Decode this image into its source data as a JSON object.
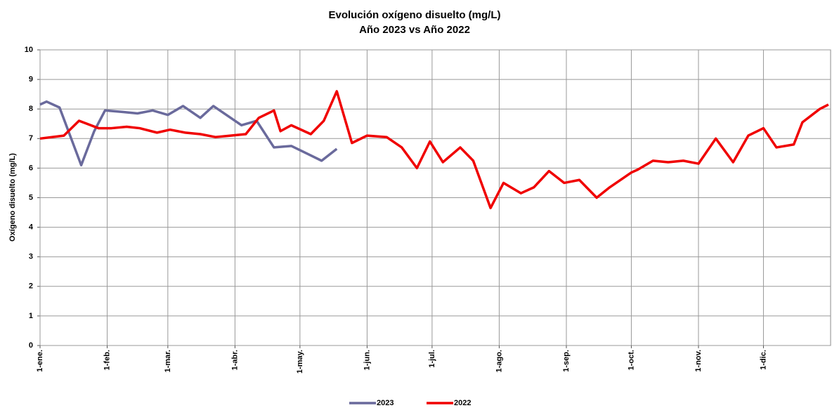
{
  "chart_data": {
    "type": "line",
    "title": "Evolución oxígeno disuelto (mg/L)",
    "subtitle": "Año 2023 vs Año 2022",
    "ylabel": "Oxígeno disuelto (mg/L)",
    "xlim": [
      0,
      365
    ],
    "xticks": [
      {
        "value": 0,
        "label": "1-ene."
      },
      {
        "value": 31,
        "label": "1-feb."
      },
      {
        "value": 59,
        "label": "1-mar."
      },
      {
        "value": 90,
        "label": "1-abr."
      },
      {
        "value": 120,
        "label": "1-may."
      },
      {
        "value": 151,
        "label": "1-jun."
      },
      {
        "value": 181,
        "label": "1-jul."
      },
      {
        "value": 212,
        "label": "1-ago."
      },
      {
        "value": 243,
        "label": "1-sep."
      },
      {
        "value": 273,
        "label": "1-oct."
      },
      {
        "value": 304,
        "label": "1-nov."
      },
      {
        "value": 334,
        "label": "1-dic."
      }
    ],
    "ylim": [
      0,
      10
    ],
    "yticks": [
      0,
      1,
      2,
      3,
      4,
      5,
      6,
      7,
      8,
      9,
      10
    ],
    "grid": true,
    "legend": "bottom",
    "series": [
      {
        "name": "2023",
        "color": "#6a6a9c",
        "x": [
          0,
          3,
          9,
          19,
          25,
          30,
          38,
          45,
          52,
          59,
          66,
          74,
          80,
          87,
          93,
          100,
          108,
          116,
          123,
          130,
          137
        ],
        "values": [
          8.15,
          8.25,
          8.05,
          6.1,
          7.25,
          7.95,
          7.9,
          7.85,
          7.95,
          7.8,
          8.1,
          7.7,
          8.1,
          7.75,
          7.45,
          7.6,
          6.7,
          6.75,
          6.5,
          6.25,
          6.65
        ]
      },
      {
        "name": "2022",
        "color": "#f00000",
        "x": [
          0,
          11,
          18,
          27,
          33,
          40,
          46,
          54,
          60,
          67,
          74,
          81,
          88,
          95,
          101,
          108,
          111,
          116,
          125,
          131,
          137,
          144,
          151,
          160,
          167,
          174,
          180,
          186,
          194,
          200,
          208,
          214,
          222,
          228,
          235,
          242,
          249,
          257,
          263,
          273,
          276,
          283,
          290,
          297,
          304,
          312,
          320,
          327,
          334,
          340,
          348,
          352,
          360,
          364
        ],
        "values": [
          7.0,
          7.1,
          7.6,
          7.35,
          7.35,
          7.4,
          7.35,
          7.2,
          7.3,
          7.2,
          7.15,
          7.05,
          7.1,
          7.15,
          7.7,
          7.95,
          7.25,
          7.45,
          7.15,
          7.6,
          8.6,
          6.85,
          7.1,
          7.05,
          6.7,
          6.0,
          6.9,
          6.2,
          6.7,
          6.25,
          4.65,
          5.5,
          5.15,
          5.35,
          5.9,
          5.5,
          5.6,
          5.0,
          5.35,
          5.85,
          5.95,
          6.25,
          6.2,
          6.25,
          6.15,
          7.0,
          6.2,
          7.1,
          7.35,
          6.7,
          6.8,
          7.55,
          8.0,
          8.15
        ]
      }
    ]
  }
}
